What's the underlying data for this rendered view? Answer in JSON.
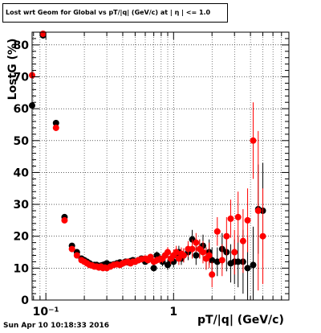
{
  "window": {
    "timestamp": "Sun Apr 10 10:18:33 2016"
  },
  "chart_data": {
    "type": "scatter",
    "title": "Lost wrt Geom for Global vs pT/|q| (GeV/c) at | η | <= 1.0",
    "xlabel": "pT/|q| (GeV/c)",
    "ylabel": "LostG (%)",
    "x_scale": "log",
    "xlim": [
      0.078,
      8.0
    ],
    "ylim": [
      0,
      84
    ],
    "grid": true,
    "x_ticks": [
      {
        "value": 0.1,
        "label": "10⁻¹"
      },
      {
        "value": 1,
        "label": "1"
      }
    ],
    "y_ticks": [
      0,
      10,
      20,
      30,
      40,
      50,
      60,
      70,
      80
    ],
    "series": [
      {
        "color": "#000000",
        "x": [
          0.078,
          0.095,
          0.12,
          0.14,
          0.16,
          0.175,
          0.19,
          0.2,
          0.21,
          0.22,
          0.23,
          0.24,
          0.25,
          0.26,
          0.27,
          0.28,
          0.29,
          0.3,
          0.32,
          0.34,
          0.36,
          0.38,
          0.4,
          0.42,
          0.44,
          0.46,
          0.48,
          0.5,
          0.53,
          0.56,
          0.6,
          0.63,
          0.66,
          0.7,
          0.74,
          0.78,
          0.82,
          0.86,
          0.9,
          0.95,
          1.0,
          1.05,
          1.1,
          1.15,
          1.2,
          1.3,
          1.4,
          1.5,
          1.6,
          1.7,
          1.8,
          1.9,
          2.0,
          2.2,
          2.4,
          2.6,
          2.8,
          3.0,
          3.2,
          3.5,
          3.8,
          4.2,
          4.6,
          5.0
        ],
        "y": [
          61,
          83,
          55.5,
          26,
          17,
          15,
          13,
          12.5,
          12,
          11.5,
          11,
          11,
          11,
          10.5,
          10.8,
          11,
          11.2,
          11.5,
          11,
          11.2,
          11.5,
          11.8,
          11.5,
          12,
          11.8,
          12.2,
          12.5,
          12,
          12.5,
          13,
          12,
          12.8,
          13,
          10,
          14,
          13,
          12,
          14,
          11,
          12.5,
          12,
          14,
          15,
          13,
          14,
          15,
          19,
          14,
          16,
          17,
          13,
          15,
          12.5,
          12,
          16,
          15,
          11.5,
          12,
          12,
          12,
          10,
          11,
          28.5,
          28
        ],
        "yerr": [
          1,
          1,
          1,
          0.8,
          0.6,
          0.5,
          0.4,
          0.4,
          0.4,
          0.4,
          0.4,
          0.4,
          0.4,
          0.4,
          0.4,
          0.4,
          0.4,
          0.4,
          0.5,
          0.5,
          0.5,
          0.5,
          0.5,
          0.5,
          0.6,
          0.6,
          0.6,
          0.6,
          0.7,
          0.8,
          0.8,
          0.9,
          1,
          1,
          1.2,
          1.3,
          1.4,
          1.5,
          1.6,
          1.8,
          1.8,
          2,
          2,
          2,
          2.2,
          2.5,
          3,
          3,
          3,
          3.5,
          3.5,
          4,
          4,
          4.5,
          5,
          6,
          6,
          7,
          8,
          10,
          10,
          12,
          14,
          15
        ]
      },
      {
        "color": "#ff0000",
        "x": [
          0.078,
          0.095,
          0.12,
          0.14,
          0.16,
          0.175,
          0.19,
          0.2,
          0.21,
          0.22,
          0.23,
          0.24,
          0.25,
          0.26,
          0.27,
          0.28,
          0.29,
          0.3,
          0.32,
          0.34,
          0.36,
          0.38,
          0.4,
          0.42,
          0.44,
          0.46,
          0.48,
          0.5,
          0.53,
          0.56,
          0.6,
          0.63,
          0.66,
          0.7,
          0.74,
          0.78,
          0.82,
          0.86,
          0.9,
          0.95,
          1.0,
          1.05,
          1.1,
          1.15,
          1.2,
          1.3,
          1.4,
          1.5,
          1.6,
          1.7,
          1.8,
          1.9,
          2.0,
          2.2,
          2.4,
          2.6,
          2.8,
          3.0,
          3.2,
          3.5,
          3.8,
          4.2,
          4.6,
          5.0
        ],
        "y": [
          70.5,
          83.5,
          54,
          25,
          16,
          14,
          12.5,
          12,
          11.5,
          11,
          10.8,
          10.5,
          10.5,
          10.2,
          10.5,
          10,
          10.2,
          10,
          10.5,
          11,
          11.2,
          11,
          11.5,
          11.8,
          12,
          11.5,
          12,
          12,
          12.5,
          12.8,
          13,
          12.5,
          13.5,
          12,
          12.5,
          12.8,
          13,
          14,
          15,
          13,
          14,
          15,
          13,
          14.5,
          14,
          16,
          16,
          18,
          16,
          15,
          13,
          14,
          8,
          21.5,
          12.5,
          20,
          25.5,
          15,
          26,
          18.5,
          25,
          50,
          28,
          20
        ],
        "yerr": [
          1,
          1,
          1,
          0.8,
          0.6,
          0.5,
          0.4,
          0.4,
          0.4,
          0.4,
          0.4,
          0.4,
          0.4,
          0.4,
          0.4,
          0.4,
          0.4,
          0.4,
          0.5,
          0.5,
          0.5,
          0.5,
          0.5,
          0.5,
          0.6,
          0.6,
          0.6,
          0.6,
          0.7,
          0.8,
          0.8,
          0.9,
          1,
          1,
          1.2,
          1.3,
          1.4,
          1.5,
          1.6,
          1.8,
          1.8,
          2,
          2,
          2,
          2.2,
          2.5,
          3,
          3,
          3,
          3.5,
          3.5,
          4,
          4,
          4.5,
          5,
          6,
          6,
          7,
          8,
          10,
          10,
          12,
          25,
          15
        ]
      }
    ]
  }
}
